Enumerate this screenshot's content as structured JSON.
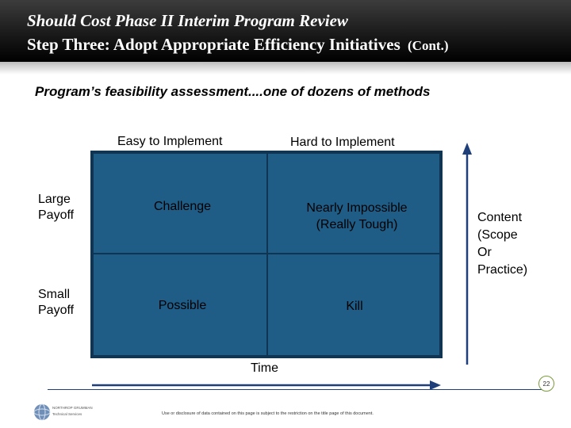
{
  "header": {
    "line1": "Should Cost Phase II Interim Program Review",
    "line2": "Step Three:  Adopt Appropriate Efficiency Initiatives",
    "line2_suffix": "(Cont.)"
  },
  "subtitle": "Program’s feasibility assessment....one of dozens of methods",
  "matrix": {
    "col_headers": [
      "Easy to Implement",
      "Hard to Implement"
    ],
    "row_headers": [
      "Large\nPayoff",
      "Small\nPayoff"
    ],
    "cells": [
      "Challenge",
      "Nearly Impossible\n(Really Tough)",
      "Possible",
      "Kill"
    ]
  },
  "axes": {
    "vertical_label": "Content\n(Scope\nOr\nPractice)",
    "horizontal_label": "Time"
  },
  "footer": {
    "page_number": "22",
    "disclaimer": "Use or disclosure of data contained on this page is subject to the restriction on the title page of this document.",
    "logo_line1": "NORTHROP GRUMMAN",
    "logo_line2": "Technical Services"
  },
  "colors": {
    "matrix_fill": "#1f5c86",
    "matrix_border": "#0f3552",
    "axis_color": "#1f3f7a",
    "header_bg": "#000000"
  }
}
